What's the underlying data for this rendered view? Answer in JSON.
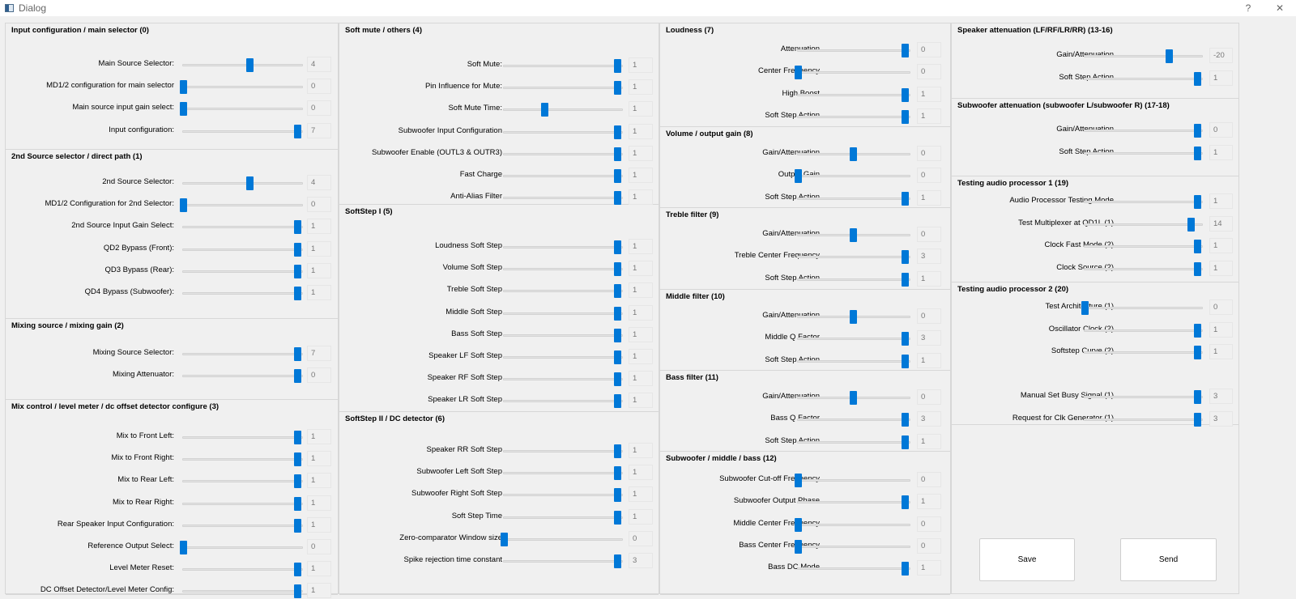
{
  "window": {
    "title": "Dialog",
    "help_label": "?",
    "close_label": "✕"
  },
  "columns": [
    {
      "groups": [
        {
          "title": "Input configuration / main selector (0)",
          "rows": [
            {
              "label": "Main Source Selector:",
              "value": "4"
            },
            {
              "label": "MD1/2 configuration for main selector",
              "value": "0"
            },
            {
              "label": "Main source input gain select:",
              "value": "0"
            },
            {
              "label": "Input configuration:",
              "value": "7"
            }
          ]
        },
        {
          "title": "2nd Source selector / direct path (1)",
          "rows": [
            {
              "label": "2nd Source Selector:",
              "value": "4"
            },
            {
              "label": "MD1/2 Configuration for 2nd Selector:",
              "value": "0"
            },
            {
              "label": "2nd Source Input Gain Select:",
              "value": "1"
            },
            {
              "label": "QD2 Bypass (Front):",
              "value": "1"
            },
            {
              "label": "QD3 Bypass (Rear):",
              "value": "1"
            },
            {
              "label": "QD4 Bypass (Subwoofer):",
              "value": "1"
            }
          ]
        },
        {
          "title": "Mixing source / mixing gain (2)",
          "rows": [
            {
              "label": "Mixing Source Selector:",
              "value": "7"
            },
            {
              "label": "Mixing Attenuator:",
              "value": "0"
            }
          ]
        },
        {
          "title": "Mix control / level meter / dc offset detector configure (3)",
          "rows": [
            {
              "label": "Mix to Front Left:",
              "value": "1"
            },
            {
              "label": "Mix to Front Right:",
              "value": "1"
            },
            {
              "label": "Mix to Rear Left:",
              "value": "1"
            },
            {
              "label": "Mix to Rear Right:",
              "value": "1"
            },
            {
              "label": "Rear Speaker Input Configuration:",
              "value": "1"
            },
            {
              "label": "Reference Output Select:",
              "value": "0"
            },
            {
              "label": "Level Meter Reset:",
              "value": "1"
            },
            {
              "label": "DC Offset Detector/Level Meter Config:",
              "value": "1"
            }
          ]
        }
      ]
    },
    {
      "groups": [
        {
          "title": "Soft mute / others (4)",
          "rows": [
            {
              "label": "Soft Mute:",
              "value": "1"
            },
            {
              "label": "Pin Influence for Mute:",
              "value": "1"
            },
            {
              "label": "Soft Mute Time:",
              "value": "1"
            },
            {
              "label": "Subwoofer Input Configuration",
              "value": "1"
            },
            {
              "label": "Subwoofer Enable (OUTL3 & OUTR3)",
              "value": "1"
            },
            {
              "label": "Fast Charge",
              "value": "1"
            },
            {
              "label": "Anti-Alias Filter",
              "value": "1"
            }
          ]
        },
        {
          "title": "SoftStep I (5)",
          "rows": [
            {
              "label": "Loudness Soft Step",
              "value": "1"
            },
            {
              "label": "Volume Soft Step",
              "value": "1"
            },
            {
              "label": "Treble Soft Step",
              "value": "1"
            },
            {
              "label": "Middle Soft Step",
              "value": "1"
            },
            {
              "label": "Bass Soft Step",
              "value": "1"
            },
            {
              "label": "Speaker LF Soft Step",
              "value": "1"
            },
            {
              "label": "Speaker RF Soft Step",
              "value": "1"
            },
            {
              "label": "Speaker LR Soft Step",
              "value": "1"
            }
          ]
        },
        {
          "title": "SoftStep II / DC detector (6)",
          "rows": [
            {
              "label": "Speaker RR Soft Step",
              "value": "1"
            },
            {
              "label": "Subwoofer Left Soft Step",
              "value": "1"
            },
            {
              "label": "Subwoofer Right Soft Step",
              "value": "1"
            },
            {
              "label": "Soft Step Time",
              "value": "1"
            },
            {
              "label": "Zero-comparator Window size",
              "value": "0"
            },
            {
              "label": "Spike rejection time constant",
              "value": "3"
            }
          ]
        }
      ]
    },
    {
      "groups": [
        {
          "title": "Loudness (7)",
          "rows": [
            {
              "label": "Attenuation",
              "value": "0"
            },
            {
              "label": "Center Frequency",
              "value": "0"
            },
            {
              "label": "High Boost",
              "value": "1"
            },
            {
              "label": "Soft Step Action",
              "value": "1"
            }
          ]
        },
        {
          "title": "Volume / output gain (8)",
          "rows": [
            {
              "label": "Gain/Attenuation",
              "value": "0"
            },
            {
              "label": "Output Gain",
              "value": "0"
            },
            {
              "label": "Soft Step Action",
              "value": "1"
            }
          ]
        },
        {
          "title": "Treble filter (9)",
          "rows": [
            {
              "label": "Gain/Attenuation",
              "value": "0"
            },
            {
              "label": "Treble Center Frequency",
              "value": "3"
            },
            {
              "label": "Soft Step Action",
              "value": "1"
            }
          ]
        },
        {
          "title": "Middle filter (10)",
          "rows": [
            {
              "label": "Gain/Attenuation",
              "value": "0"
            },
            {
              "label": "Middle Q Factor",
              "value": "3"
            },
            {
              "label": "Soft Step Action",
              "value": "1"
            }
          ]
        },
        {
          "title": "Bass filter (11)",
          "rows": [
            {
              "label": "Gain/Attenuation",
              "value": "0"
            },
            {
              "label": "Bass Q Factor",
              "value": "3"
            },
            {
              "label": "Soft Step Action",
              "value": "1"
            }
          ]
        },
        {
          "title": "Subwoofer / middle / bass (12)",
          "rows": [
            {
              "label": "Subwoofer Cut-off Frequency",
              "value": "0"
            },
            {
              "label": "Subwoofer Output Phase",
              "value": "1"
            },
            {
              "label": "Middle Center Frequency",
              "value": "0"
            },
            {
              "label": "Bass Center Frequency",
              "value": "0"
            },
            {
              "label": "Bass DC Mode",
              "value": "1"
            }
          ]
        }
      ]
    },
    {
      "groups": [
        {
          "title": "Speaker attenuation (LF/RF/LR/RR) (13-16)",
          "rows": [
            {
              "label": "Gain/Attenuation",
              "value": "-20"
            },
            {
              "label": "Soft Step Action",
              "value": "1"
            }
          ]
        },
        {
          "title": "Subwoofer attenuation (subwoofer L/subwoofer R) (17-18)",
          "rows": [
            {
              "label": "Gain/Attenuation",
              "value": "0"
            },
            {
              "label": "Soft Step Action",
              "value": "1"
            }
          ]
        },
        {
          "title": "Testing audio processor 1 (19)",
          "rows": [
            {
              "label": "Audio Processor Testing Mode",
              "value": "1"
            },
            {
              "label": "Test Multiplexer at QD1L (1)",
              "value": "14"
            },
            {
              "label": "Clock Fast Mode (2)",
              "value": "1"
            },
            {
              "label": "Clock Source (2)",
              "value": "1"
            }
          ]
        },
        {
          "title": "Testing audio processor 2 (20)",
          "rows": [
            {
              "label": "Test Architecture (1)",
              "value": "0"
            },
            {
              "label": "Oscillator Clock (2)",
              "value": "1"
            },
            {
              "label": "Softstep Curve (2)",
              "value": "1"
            },
            {
              "label": "Manual Set Busy Signal (1)",
              "value": "3"
            },
            {
              "label": "Request for Clk Generator (1)",
              "value": "3"
            }
          ]
        }
      ]
    }
  ],
  "buttons": {
    "save_label": "Save",
    "send_label": "Send"
  },
  "accent_color": "#0078d7"
}
